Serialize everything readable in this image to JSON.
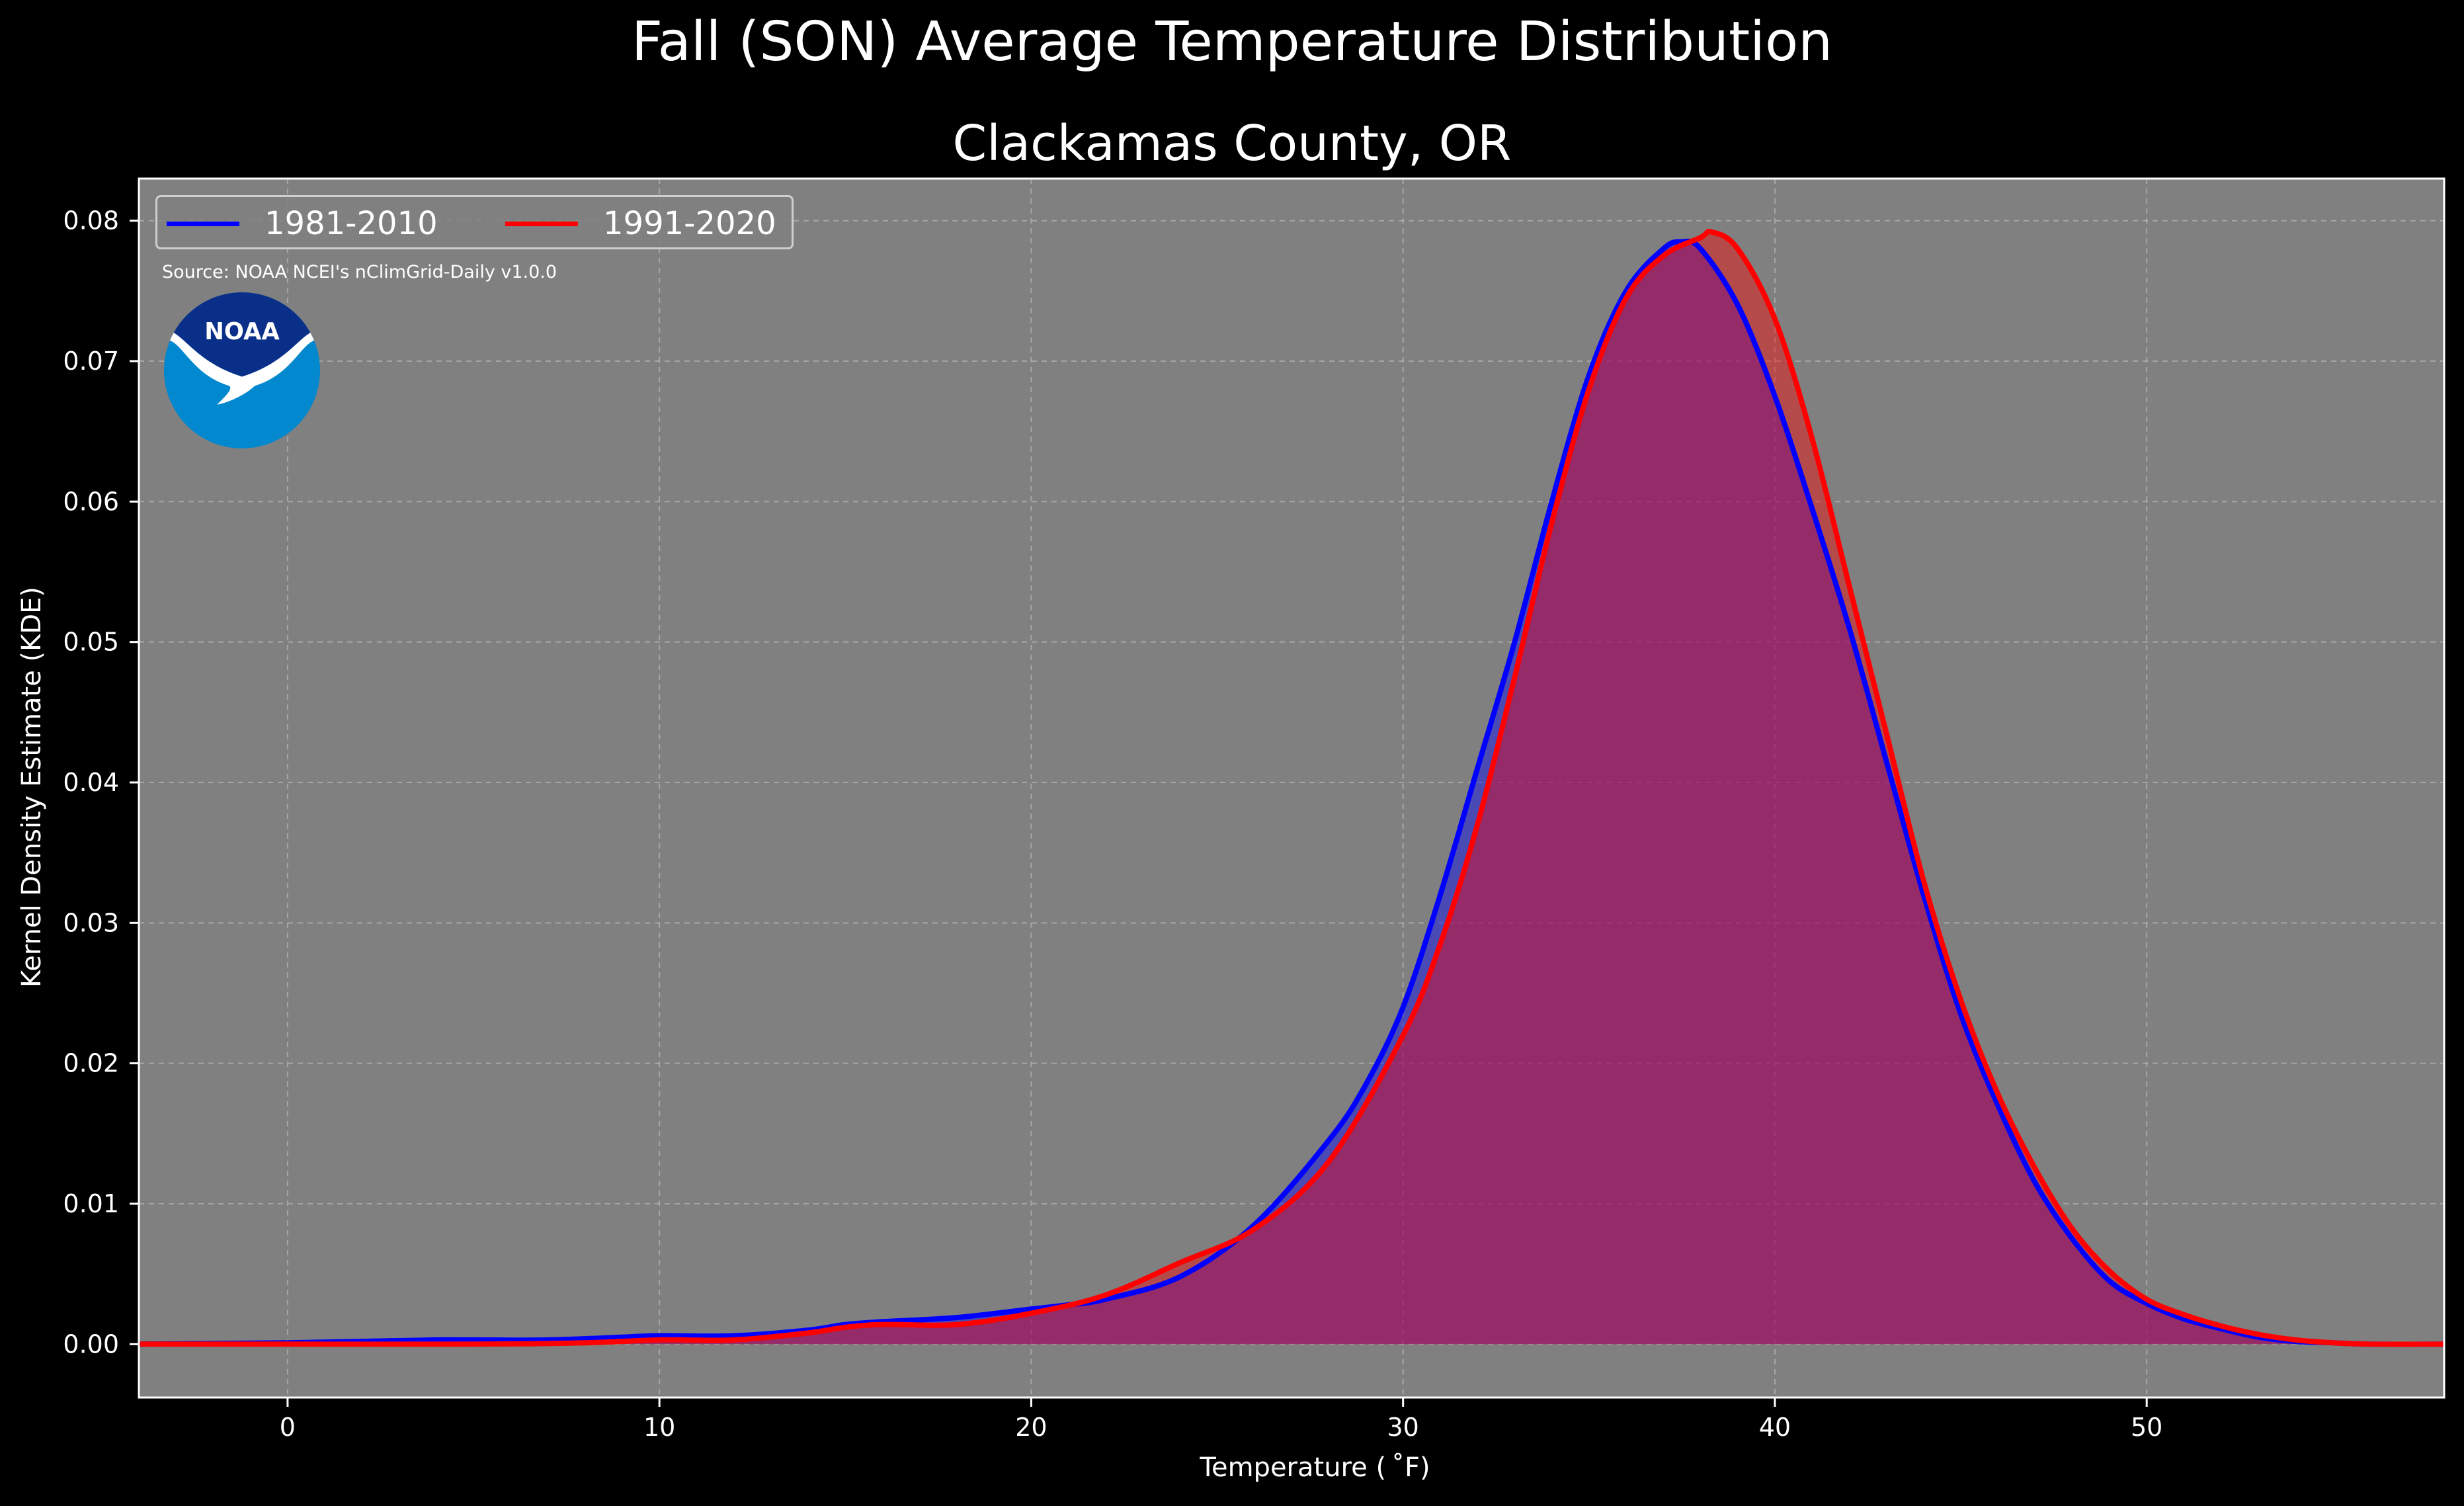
{
  "title": "Fall (SON) Average Temperature Distribution",
  "subtitle": "Clackamas County, OR",
  "source_note": "Source: NOAA NCEI's nClimGrid-Daily v1.0.0",
  "logo_text": "NOAA",
  "colors": {
    "background": "#000000",
    "plot_background": "#808080",
    "series_1981_2010": "#0000ff",
    "series_1991_2020": "#ff0000",
    "fill_overlap": "#9e1f5e",
    "logo_dark": "#0a2f88",
    "logo_light": "#0288cf"
  },
  "chart_data": {
    "type": "area",
    "xlabel": "Temperature ($^\\circ$F)",
    "xlabel_display": "Temperature ( ˚F)",
    "ylabel": "Kernel Density Estimate (KDE)",
    "xlim": [
      -4,
      58
    ],
    "ylim": [
      -0.0038,
      0.083
    ],
    "x_ticks": [
      0,
      10,
      20,
      30,
      40,
      50
    ],
    "x_tick_labels": [
      "0",
      "10",
      "20",
      "30",
      "40",
      "50"
    ],
    "y_ticks": [
      0.0,
      0.01,
      0.02,
      0.03,
      0.04,
      0.05,
      0.06,
      0.07,
      0.08
    ],
    "y_tick_labels": [
      "0.00",
      "0.01",
      "0.02",
      "0.03",
      "0.04",
      "0.05",
      "0.06",
      "0.07",
      "0.08"
    ],
    "grid": true,
    "legend_position": "top-left",
    "series": [
      {
        "name": "1981-2010",
        "color": "#0000ff",
        "x": [
          -4,
          0,
          2,
          4,
          5,
          7,
          9,
          10,
          12,
          14,
          15,
          16,
          18,
          20,
          21,
          22,
          24,
          26,
          28,
          29,
          30,
          31,
          32,
          33,
          34,
          35,
          36,
          37,
          37.5,
          38,
          39,
          40,
          41,
          42,
          43,
          44,
          45,
          46,
          47,
          48,
          49,
          50,
          51,
          52,
          53,
          54,
          55,
          56,
          58
        ],
        "values": [
          0.0,
          0.0001,
          0.0002,
          0.0003,
          0.0003,
          0.0003,
          0.0005,
          0.0006,
          0.0006,
          0.001,
          0.0014,
          0.0016,
          0.0019,
          0.0025,
          0.0028,
          0.0032,
          0.0048,
          0.0085,
          0.0145,
          0.0185,
          0.024,
          0.032,
          0.041,
          0.05,
          0.06,
          0.069,
          0.075,
          0.078,
          0.0785,
          0.078,
          0.074,
          0.0675,
          0.0595,
          0.051,
          0.0415,
          0.032,
          0.0235,
          0.017,
          0.0115,
          0.0075,
          0.0045,
          0.0029,
          0.0018,
          0.0011,
          0.0005,
          0.0002,
          0.0001,
          0.0,
          0.0
        ]
      },
      {
        "name": "1991-2020",
        "color": "#ff0000",
        "x": [
          -4,
          0,
          5,
          8,
          10,
          12,
          14,
          15,
          16,
          18,
          20,
          22,
          24,
          26,
          28,
          30,
          31,
          32,
          33,
          34,
          35,
          36,
          37,
          38,
          38.3,
          39,
          40,
          41,
          42,
          43,
          44,
          45,
          46,
          47,
          48,
          49,
          50,
          51,
          52,
          53,
          54,
          55,
          56,
          58
        ],
        "values": [
          0.0,
          0.0,
          0.0,
          0.0001,
          0.0003,
          0.0003,
          0.0008,
          0.0012,
          0.0014,
          0.0014,
          0.0022,
          0.0035,
          0.0058,
          0.0082,
          0.013,
          0.022,
          0.0285,
          0.037,
          0.0475,
          0.0585,
          0.068,
          0.0745,
          0.0775,
          0.0788,
          0.0792,
          0.078,
          0.073,
          0.0645,
          0.054,
          0.0435,
          0.033,
          0.0245,
          0.0178,
          0.0125,
          0.0082,
          0.0052,
          0.0032,
          0.0021,
          0.0013,
          0.0007,
          0.0003,
          0.0001,
          0.0,
          0.0
        ]
      }
    ]
  }
}
